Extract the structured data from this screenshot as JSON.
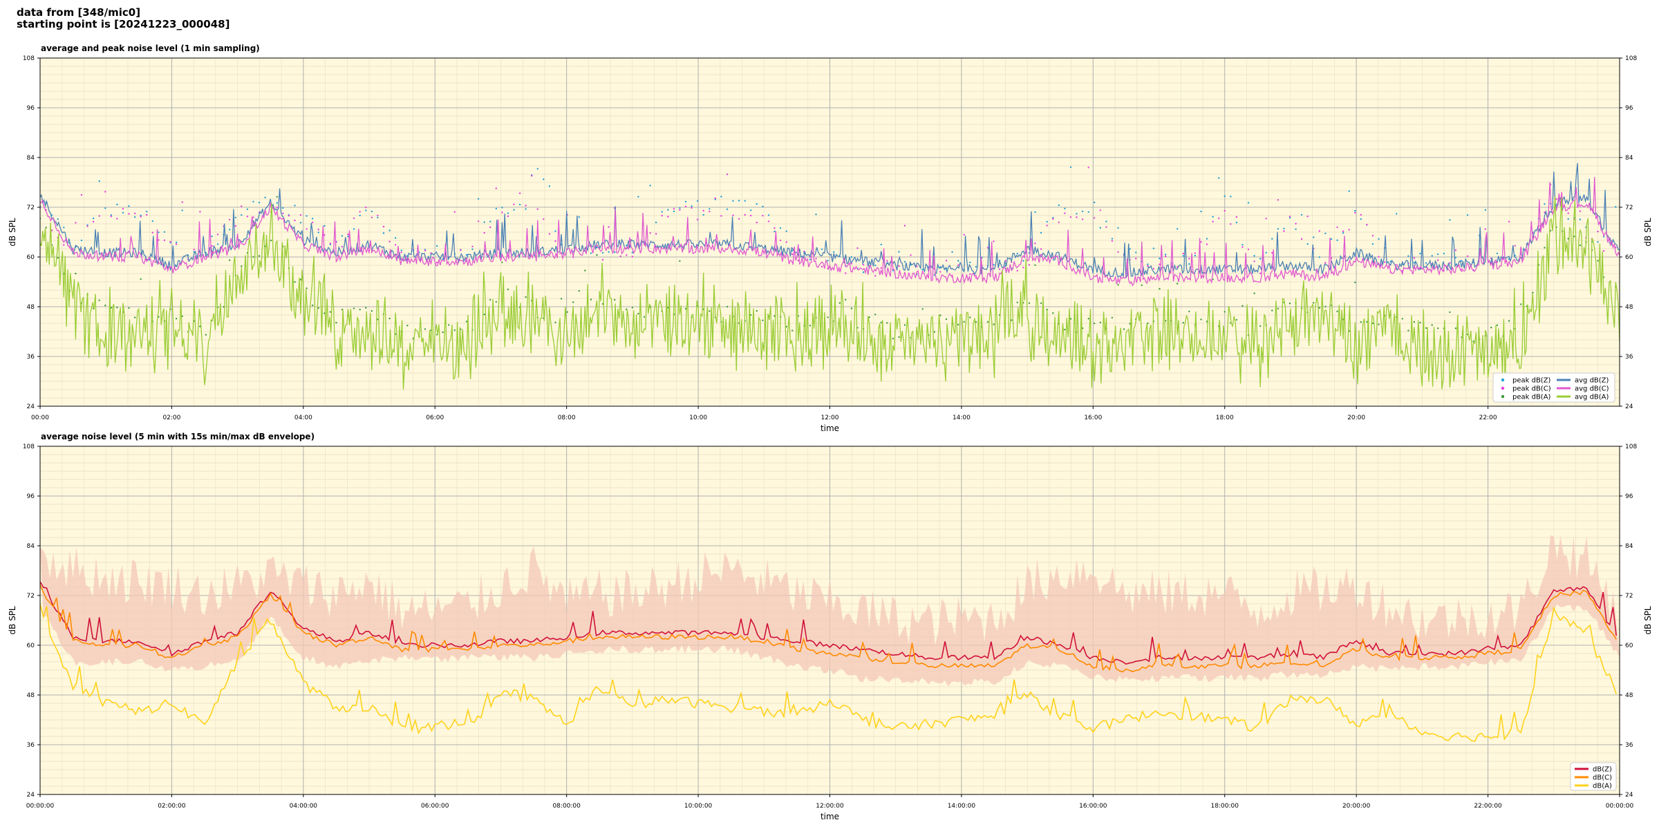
{
  "header": {
    "line1": "data from [348/mic0]",
    "line2": "starting point is [20241223_000048]"
  },
  "chart_data": [
    {
      "type": "line",
      "title": "average and peak noise level (1 min sampling)",
      "xlabel": "time",
      "ylabel": "dB SPL",
      "ylim": [
        24,
        108
      ],
      "xlim_hours": [
        0,
        24
      ],
      "y_ticks": [
        "24",
        "36",
        "48",
        "60",
        "72",
        "84",
        "96",
        "108"
      ],
      "x_ticks": [
        "00:00",
        "02:00",
        "04:00",
        "06:00",
        "08:00",
        "10:00",
        "12:00",
        "14:00",
        "16:00",
        "18:00",
        "20:00",
        "22:00"
      ],
      "grid": true,
      "legend_position": "lower-right",
      "background": "#fff8dc",
      "anchor_hours": [
        0,
        0.5,
        1,
        1.5,
        2,
        2.5,
        3,
        3.5,
        4,
        4.5,
        5,
        5.5,
        6,
        6.5,
        7,
        7.5,
        8,
        8.5,
        9,
        9.5,
        10,
        10.5,
        11,
        11.5,
        12,
        12.5,
        13,
        13.5,
        14,
        14.5,
        15,
        15.5,
        16,
        16.5,
        17,
        17.5,
        18,
        18.5,
        19,
        19.5,
        20,
        20.5,
        21,
        21.5,
        22,
        22.5,
        23,
        23.5,
        24
      ],
      "series": [
        {
          "name": "peak dB(Z)",
          "kind": "scatter",
          "color": "#1f9fd6",
          "values": [
            73,
            63,
            71,
            71,
            63,
            61,
            71,
            73,
            70,
            63,
            73,
            61,
            61,
            61,
            72,
            72,
            62,
            62,
            62,
            71,
            72,
            72,
            71,
            61,
            60,
            58,
            58,
            57,
            58,
            58,
            60,
            71,
            71,
            60,
            60,
            60,
            73,
            58,
            70,
            60,
            71,
            59,
            59,
            59,
            60,
            61,
            75,
            66,
            63
          ]
        },
        {
          "name": "peak dB(C)",
          "kind": "scatter",
          "color": "#e83ce0",
          "values": [
            72,
            62,
            70,
            70,
            62,
            60,
            70,
            72,
            69,
            62,
            72,
            60,
            60,
            60,
            71,
            71,
            61,
            61,
            61,
            70,
            71,
            71,
            70,
            60,
            59,
            57,
            57,
            56,
            57,
            57,
            59,
            70,
            70,
            59,
            59,
            59,
            72,
            57,
            69,
            59,
            70,
            58,
            58,
            58,
            59,
            60,
            74,
            65,
            62
          ]
        },
        {
          "name": "peak dB(A)",
          "kind": "scatter",
          "color": "#3a9a3a",
          "values": [
            70,
            50,
            48,
            46,
            45,
            42,
            55,
            66,
            52,
            45,
            48,
            42,
            42,
            43,
            51,
            48,
            42,
            51,
            47,
            48,
            47,
            46,
            45,
            44,
            46,
            44,
            42,
            43,
            44,
            45,
            48,
            44,
            43,
            44,
            45,
            45,
            45,
            42,
            49,
            48,
            43,
            45,
            42,
            41,
            42,
            43,
            68,
            62,
            50
          ]
        },
        {
          "name": "avg dB(Z)",
          "kind": "line",
          "color": "#4a80b5",
          "values": [
            75,
            62,
            61,
            61,
            58,
            61,
            63,
            73,
            64,
            61,
            63,
            60,
            60,
            60,
            61,
            61,
            62,
            63,
            63,
            63,
            63,
            63,
            62,
            61,
            60,
            59,
            58,
            57,
            57,
            57,
            62,
            60,
            57,
            56,
            57,
            57,
            57,
            57,
            58,
            57,
            61,
            58,
            58,
            58,
            59,
            60,
            73,
            74,
            61
          ]
        },
        {
          "name": "avg dB(C)",
          "kind": "line",
          "color": "#e058d0",
          "values": [
            74,
            61,
            60,
            60,
            57,
            60,
            62,
            72,
            63,
            60,
            62,
            59,
            59,
            59,
            60,
            60,
            61,
            62,
            62,
            62,
            62,
            62,
            61,
            59,
            58,
            57,
            56,
            55,
            55,
            55,
            60,
            59,
            55,
            54,
            55,
            55,
            55,
            55,
            56,
            55,
            59,
            57,
            57,
            57,
            58,
            59,
            72,
            73,
            60
          ]
        },
        {
          "name": "avg dB(A)",
          "kind": "line",
          "color": "#99cc33",
          "values": [
            70,
            48,
            44,
            42,
            44,
            40,
            58,
            67,
            50,
            44,
            45,
            40,
            40,
            40,
            48,
            46,
            40,
            49,
            44,
            46,
            46,
            44,
            43,
            42,
            46,
            42,
            40,
            41,
            42,
            43,
            48,
            42,
            40,
            42,
            44,
            43,
            42,
            40,
            47,
            47,
            40,
            44,
            39,
            38,
            38,
            39,
            68,
            63,
            48
          ]
        }
      ]
    },
    {
      "type": "line",
      "title": "average noise level (5 min with 15s min/max dB envelope)",
      "xlabel": "time",
      "ylabel": "dB SPL",
      "ylim": [
        24,
        108
      ],
      "xlim_hours": [
        0,
        24
      ],
      "y_ticks": [
        "24",
        "36",
        "48",
        "60",
        "72",
        "84",
        "96",
        "108"
      ],
      "x_ticks": [
        "00:00:00",
        "02:00:00",
        "04:00:00",
        "06:00:00",
        "08:00:00",
        "10:00:00",
        "12:00:00",
        "14:00:00",
        "16:00:00",
        "18:00:00",
        "20:00:00",
        "22:00:00",
        "00:00:00"
      ],
      "grid": true,
      "legend_position": "lower-right",
      "background": "#fff8dc",
      "anchor_hours": [
        0,
        0.5,
        1,
        1.5,
        2,
        2.5,
        3,
        3.5,
        4,
        4.5,
        5,
        5.5,
        6,
        6.5,
        7,
        7.5,
        8,
        8.5,
        9,
        9.5,
        10,
        10.5,
        11,
        11.5,
        12,
        12.5,
        13,
        13.5,
        14,
        14.5,
        15,
        15.5,
        16,
        16.5,
        17,
        17.5,
        18,
        18.5,
        19,
        19.5,
        20,
        20.5,
        21,
        21.5,
        22,
        22.5,
        23,
        23.5,
        24
      ],
      "envelope": {
        "color": "#f4c8b8",
        "max": [
          80,
          76,
          74,
          73,
          72,
          70,
          72,
          75,
          72,
          70,
          73,
          66,
          66,
          67,
          72,
          76,
          68,
          70,
          70,
          72,
          74,
          76,
          73,
          70,
          68,
          66,
          64,
          63,
          64,
          64,
          72,
          75,
          76,
          70,
          70,
          70,
          70,
          66,
          70,
          71,
          72,
          67,
          64,
          64,
          65,
          66,
          82,
          78,
          66
        ],
        "min": [
          70,
          57,
          57,
          57,
          55,
          56,
          57,
          68,
          58,
          56,
          57,
          58,
          58,
          58,
          58,
          58,
          59,
          60,
          60,
          60,
          60,
          60,
          58,
          56,
          55,
          53,
          53,
          52,
          52,
          52,
          57,
          56,
          53,
          53,
          53,
          53,
          53,
          53,
          54,
          54,
          56,
          55,
          56,
          56,
          57,
          57,
          70,
          70,
          58
        ]
      },
      "series": [
        {
          "name": "dB(Z)",
          "color": "#d0103a",
          "values": [
            75,
            62,
            61,
            61,
            58,
            61,
            63,
            73,
            64,
            61,
            63,
            60,
            60,
            60,
            61,
            61,
            62,
            63,
            63,
            63,
            63,
            63,
            62,
            61,
            60,
            59,
            58,
            57,
            57,
            57,
            62,
            60,
            57,
            56,
            57,
            57,
            57,
            57,
            58,
            57,
            61,
            58,
            58,
            58,
            59,
            60,
            73,
            74,
            61
          ]
        },
        {
          "name": "dB(C)",
          "color": "#ff8a00",
          "values": [
            74,
            61,
            60,
            60,
            57,
            60,
            62,
            72,
            63,
            60,
            62,
            59,
            59,
            59,
            60,
            60,
            61,
            62,
            62,
            62,
            62,
            62,
            61,
            59,
            58,
            57,
            56,
            55,
            55,
            55,
            60,
            59,
            55,
            54,
            55,
            55,
            55,
            55,
            56,
            55,
            59,
            57,
            57,
            57,
            58,
            59,
            72,
            73,
            60
          ]
        },
        {
          "name": "dB(A)",
          "color": "#ffd21a",
          "values": [
            69,
            50,
            46,
            44,
            46,
            41,
            56,
            66,
            51,
            45,
            45,
            40,
            40,
            40,
            49,
            47,
            41,
            50,
            45,
            47,
            46,
            45,
            44,
            43,
            47,
            42,
            40,
            41,
            42,
            43,
            48,
            43,
            40,
            42,
            44,
            43,
            42,
            40,
            47,
            47,
            41,
            44,
            39,
            38,
            38,
            39,
            68,
            63,
            47
          ]
        }
      ]
    }
  ]
}
